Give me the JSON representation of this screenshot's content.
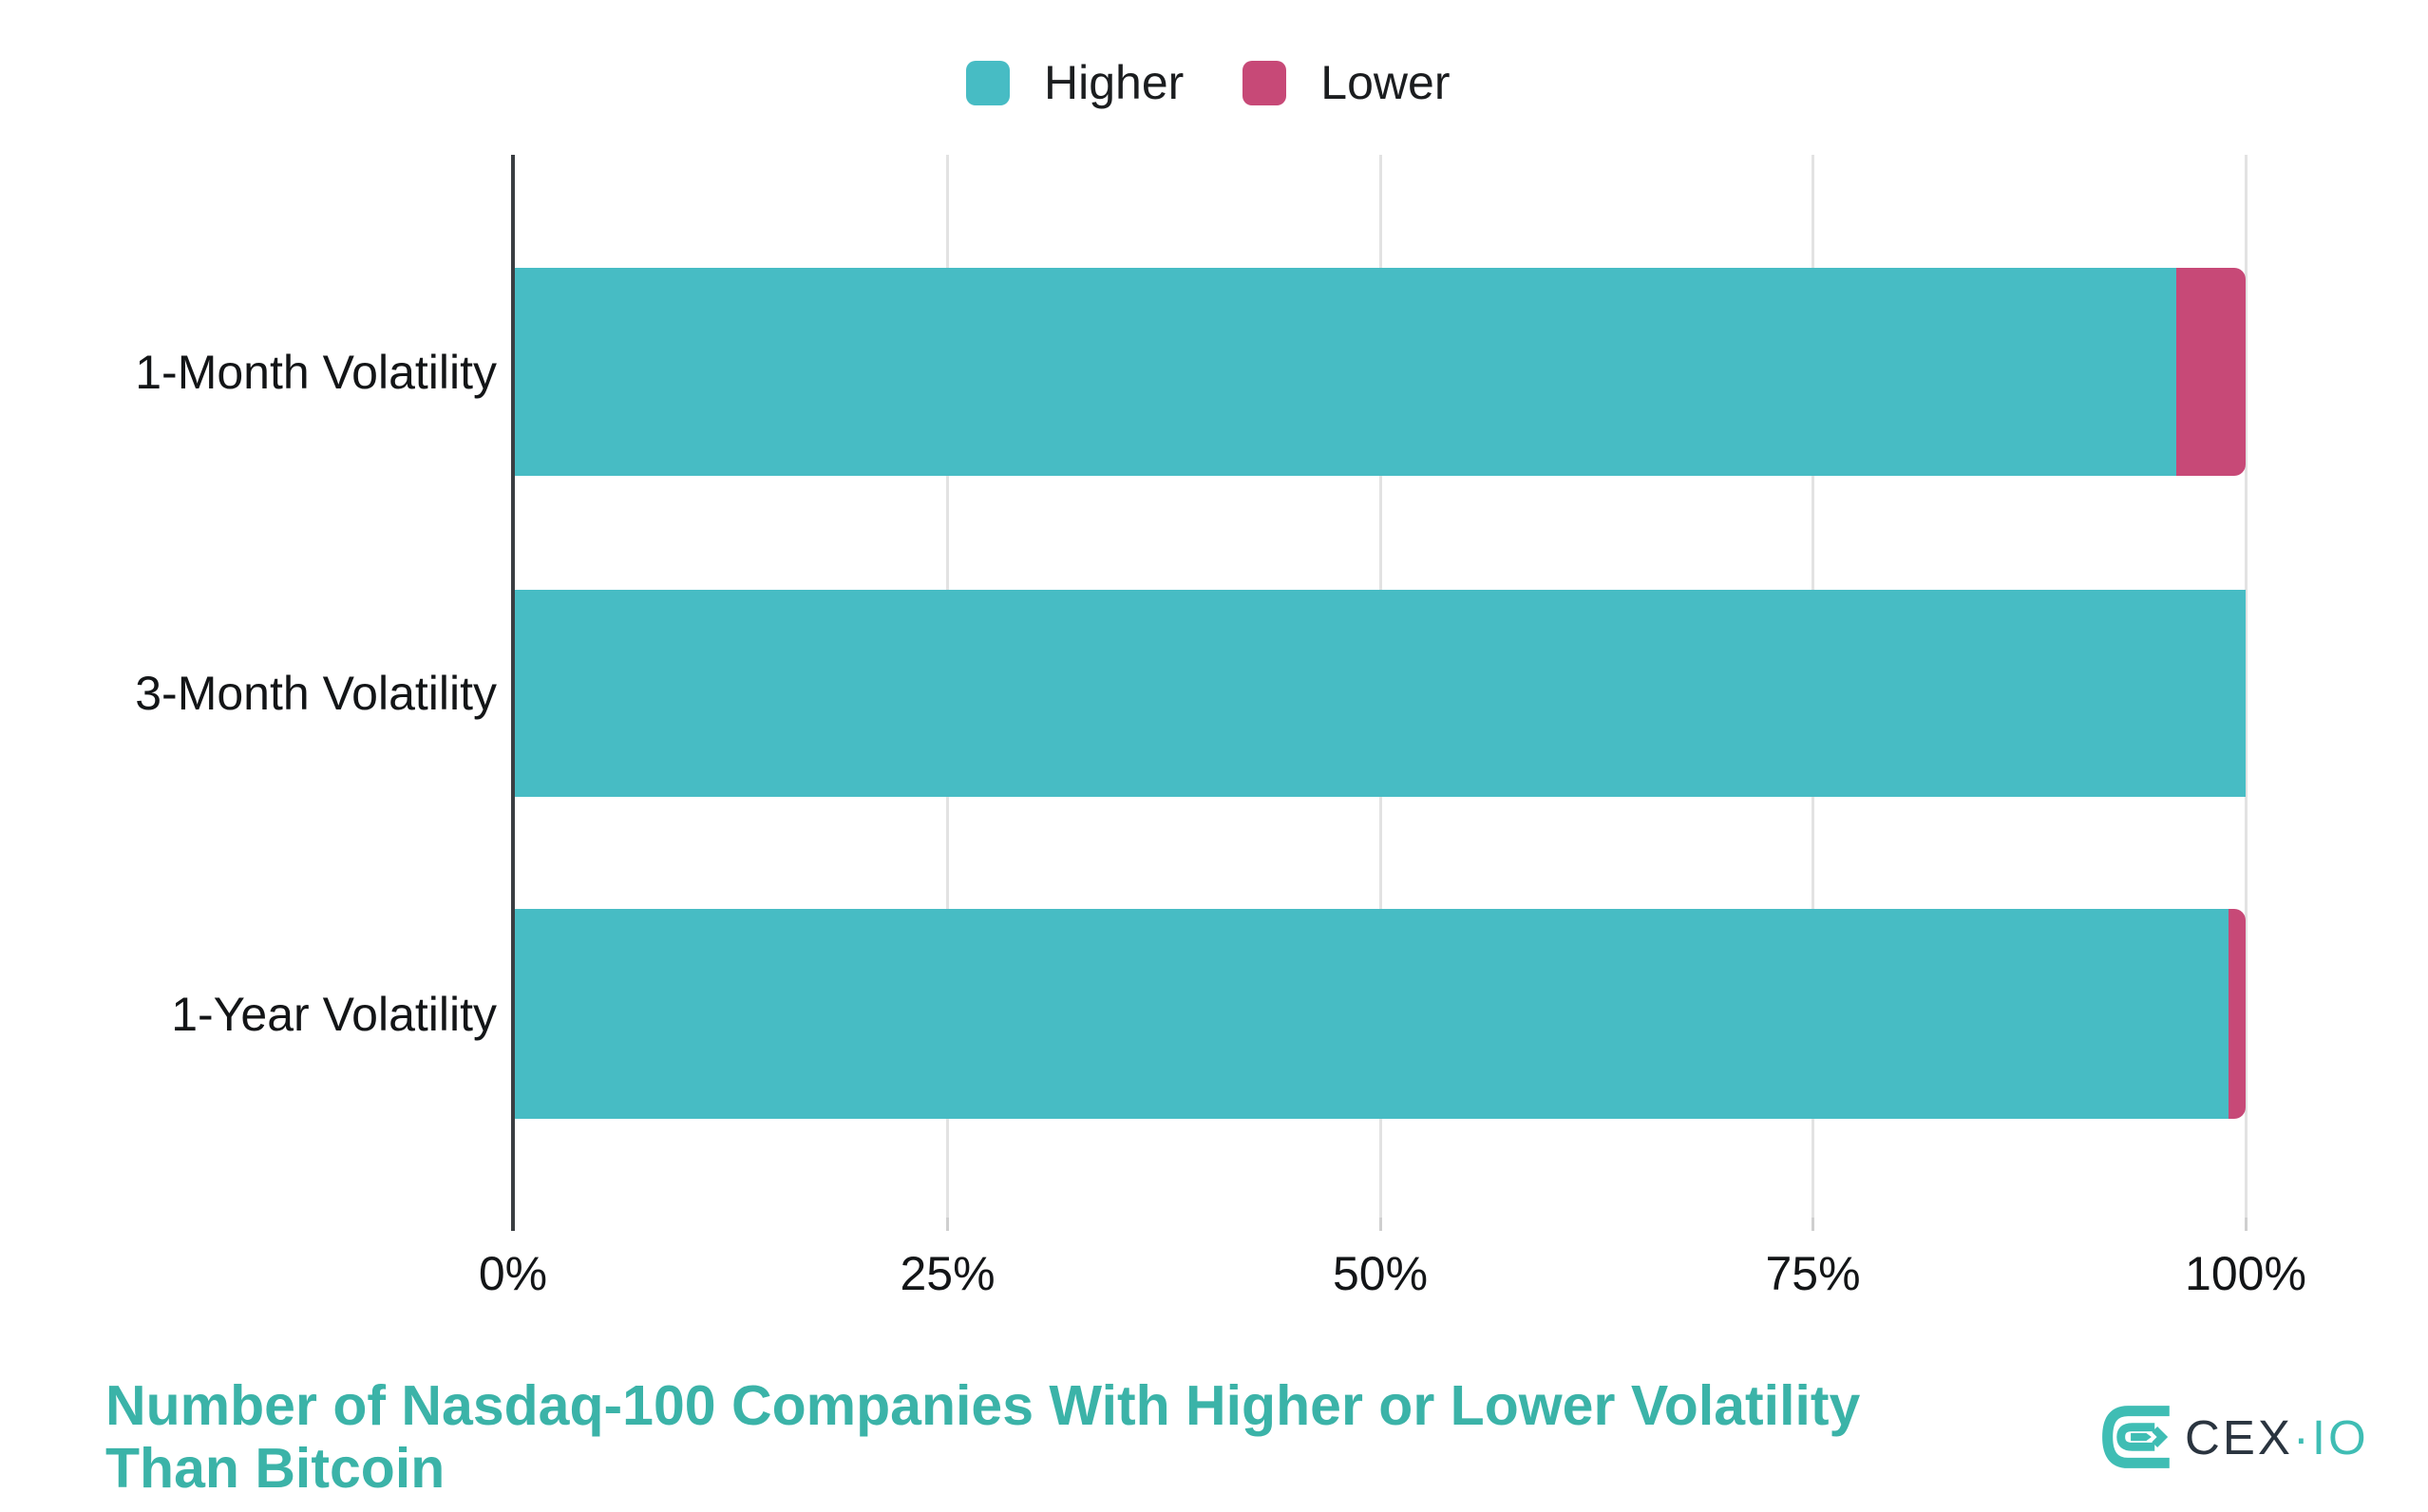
{
  "legend": {
    "items": [
      {
        "label": "Higher",
        "color": "#47BCC4"
      },
      {
        "label": "Lower",
        "color": "#C74977"
      }
    ]
  },
  "chart_data": {
    "type": "bar",
    "orientation": "horizontal",
    "stacked": true,
    "title": "Number of Nasdaq-100 Companies With Higher or Lower Volatility Than Bitcoin",
    "categories": [
      "1-Month Volatility",
      "3-Month Volatility",
      "1-Year Volatility"
    ],
    "series": [
      {
        "name": "Higher",
        "color": "#47BCC4",
        "values": [
          96,
          100,
          99
        ]
      },
      {
        "name": "Lower",
        "color": "#C74977",
        "values": [
          4,
          0,
          1
        ]
      }
    ],
    "x_tick_values": [
      0,
      25,
      50,
      75,
      100
    ],
    "x_tick_labels": [
      "0%",
      "25%",
      "50%",
      "75%",
      "100%"
    ],
    "xlim": [
      0,
      100
    ],
    "grid": "vertical light gray",
    "legend_position": "top-center"
  },
  "footer": {
    "title_lines": [
      "Number of Nasdaq-100 Companies With Higher or Lower Volatility",
      "Than Bitcoin"
    ],
    "title_color": "#3BB3A8"
  },
  "branding": {
    "text_primary": "CEX",
    "separator": "·",
    "text_secondary": "IO",
    "mark_color": "#3FBDB4",
    "text_primary_color": "#2A343F",
    "text_secondary_color": "#3FBDB4"
  }
}
